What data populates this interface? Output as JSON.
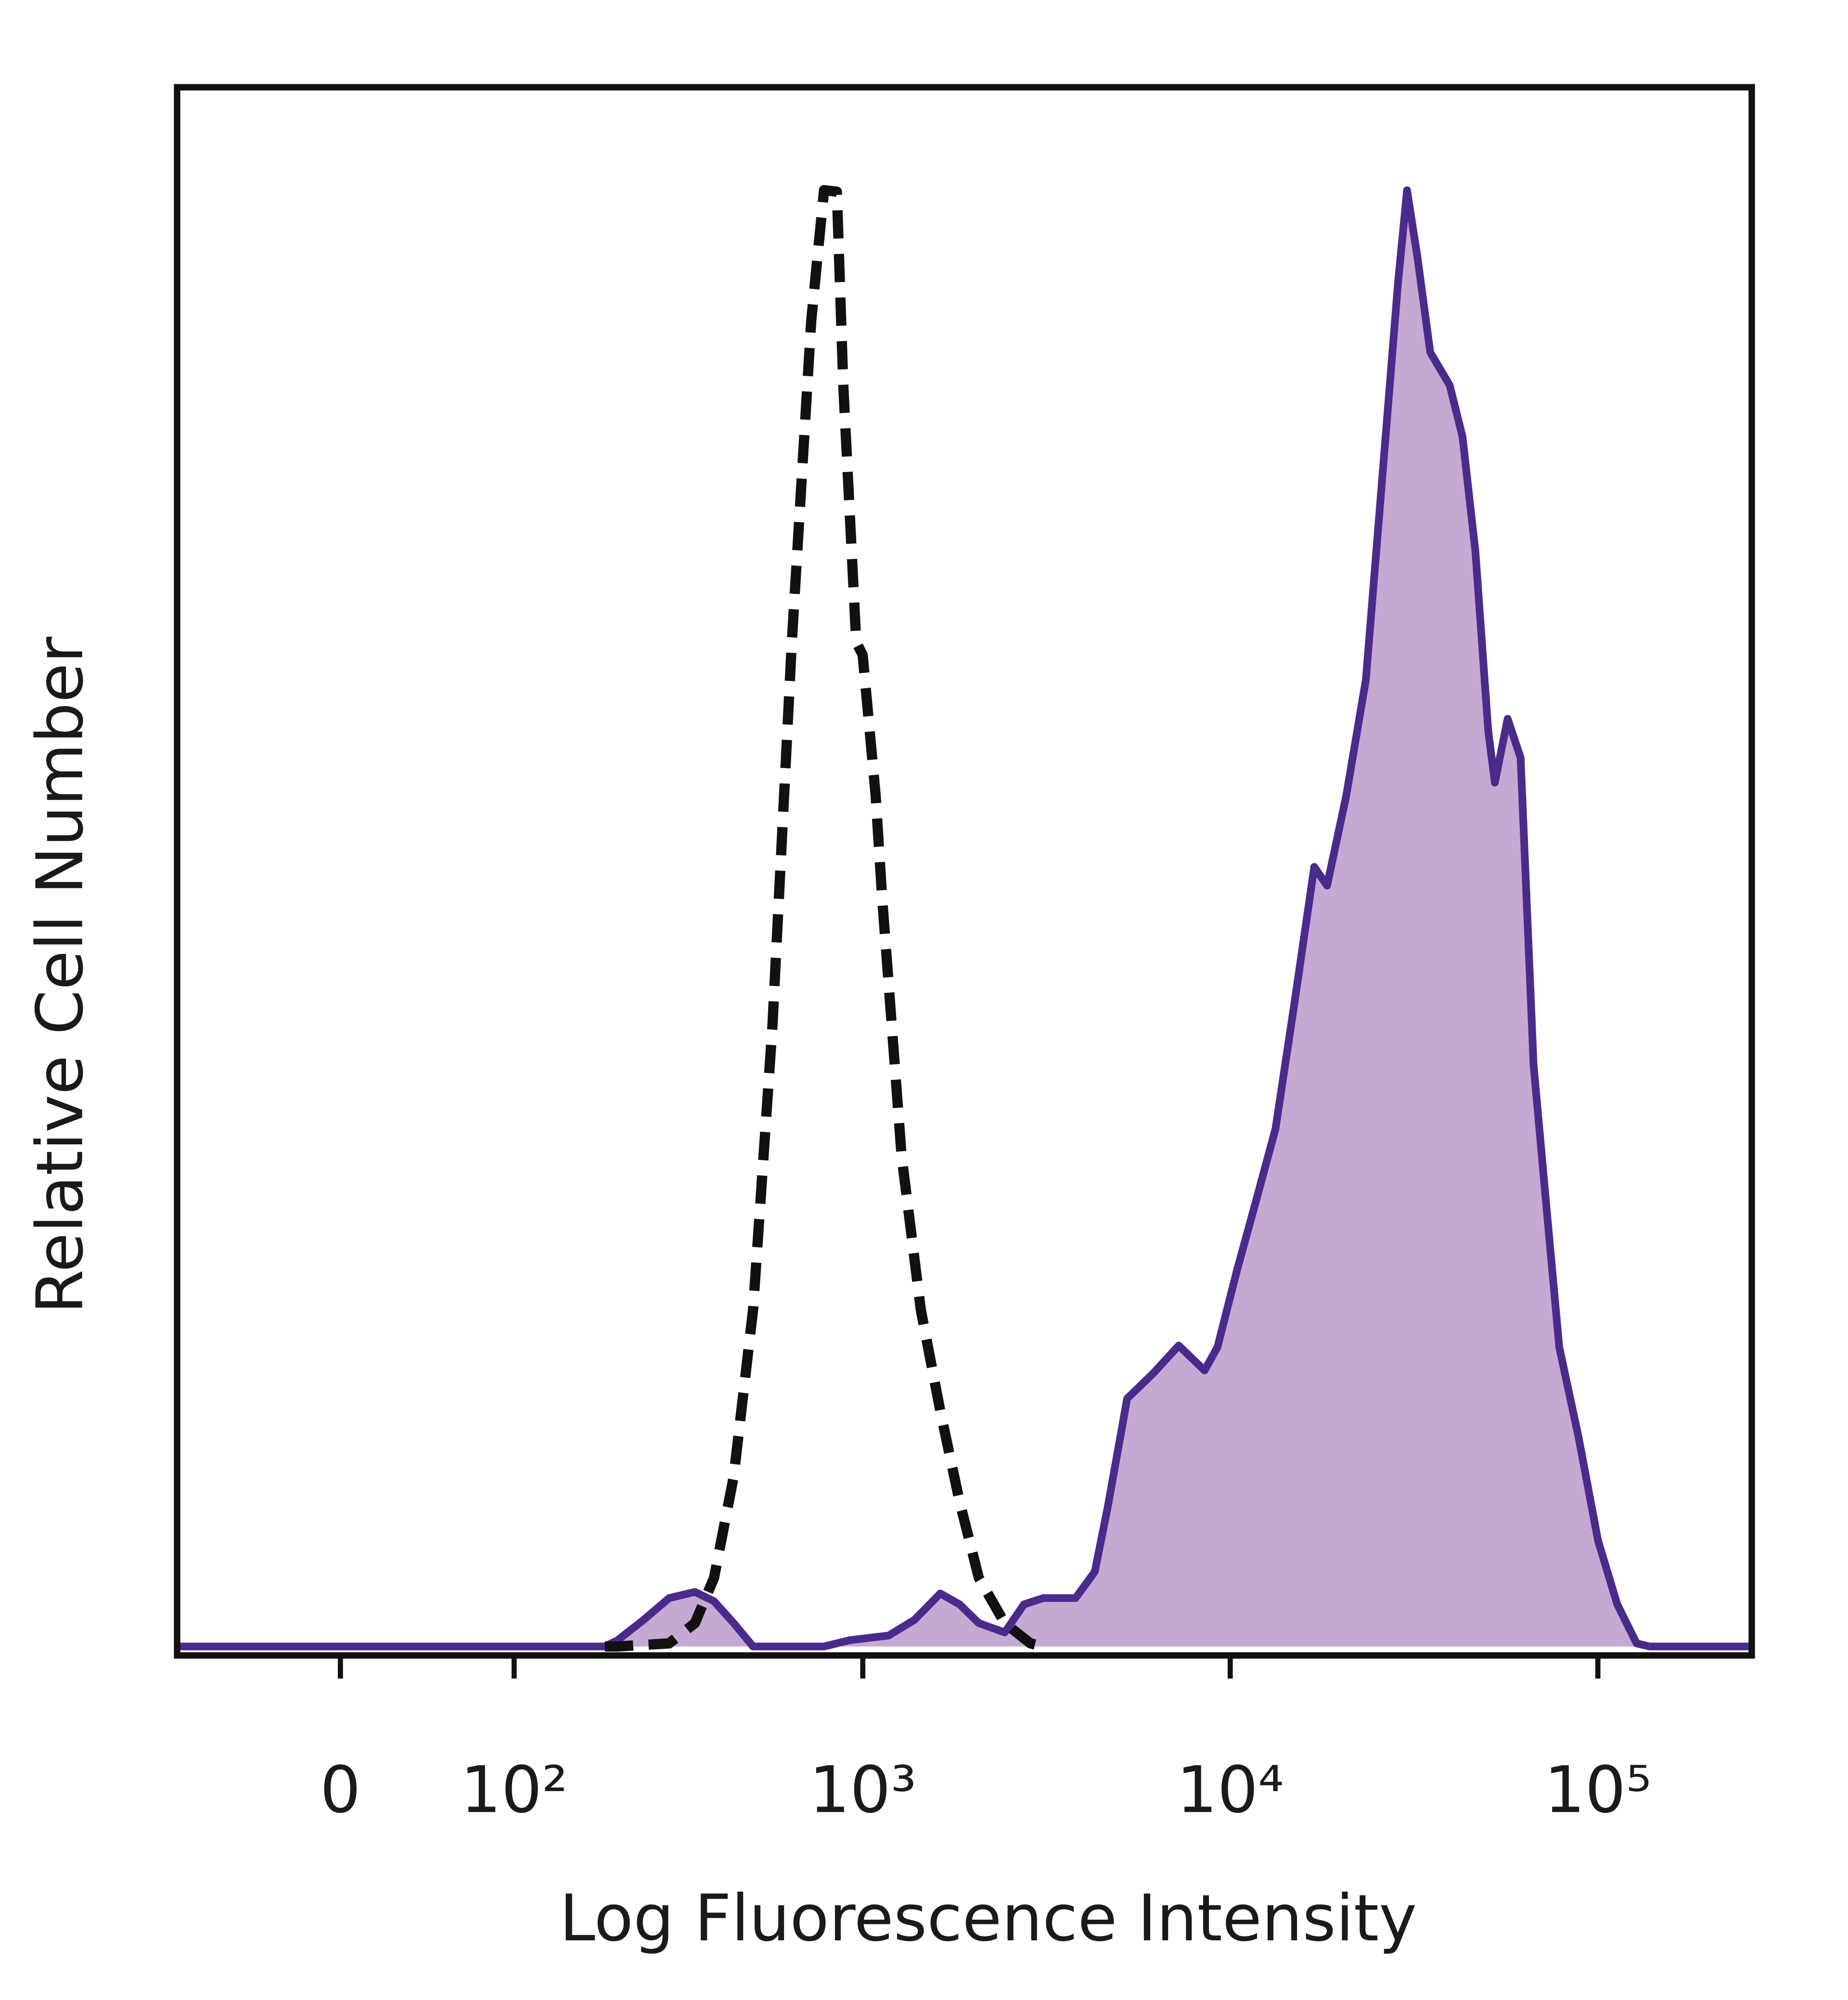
{
  "chart_data": {
    "type": "area",
    "x_label": "Log Fluorescence Intensity",
    "y_label": "Relative Cell Number",
    "xscale": "biexponential",
    "xlim": [
      -92,
      262144
    ],
    "ylim": [
      0,
      100
    ],
    "xticks": [
      0,
      {
        "value": 100,
        "label": "10²"
      },
      {
        "value": 1000,
        "label": "10³"
      },
      {
        "value": 10000,
        "label": "10⁴"
      },
      {
        "value": 100000,
        "label": "10⁵"
      }
    ],
    "series": [
      {
        "color": "#4a2b8c",
        "fill": "#c6a9d3",
        "style": "solid",
        "x": [
          -92,
          192,
          209,
          248,
          293,
          346,
          391,
          443,
          501,
          784,
          922,
          1176,
          1382,
          1626,
          1835,
          2070,
          2435,
          2747,
          3101,
          3795,
          4282,
          4647,
          5244,
          6164,
          7243,
          8516,
          9234,
          10422,
          11765,
          13278,
          14987,
          16928,
          18339,
          20695,
          23378,
          26387,
          28612,
          30259,
          32293,
          35016,
          39520,
          42826,
          46436,
          50350,
          52440,
          56848,
          61636,
          66842,
          72466,
          78508,
          88616,
          100092,
          112936,
          127452,
          138168,
          262144
        ],
        "values": [
          0,
          0,
          0.4,
          1.7,
          3.1,
          3.5,
          2.9,
          1.5,
          0,
          0,
          0.4,
          0.7,
          1.7,
          3.4,
          2.7,
          1.5,
          0.9,
          2.7,
          3.1,
          3.1,
          4.8,
          9.0,
          15.9,
          17.5,
          19.3,
          17.7,
          19.2,
          24.1,
          28.6,
          33.2,
          41.4,
          50.0,
          48.8,
          54.6,
          62.0,
          77.2,
          87.5,
          93.4,
          89.1,
          83.0,
          80.9,
          77.6,
          70.2,
          58.7,
          55.4,
          59.5,
          57.0,
          37.3,
          28.2,
          19.2,
          13.4,
          6.8,
          2.7,
          0.2,
          0,
          0
        ]
      },
      {
        "color": "#111111",
        "style": "dashed",
        "x": [
          192,
          209,
          293,
          346,
          391,
          443,
          501,
          566,
          640,
          723,
          784,
          850,
          885,
          960,
          999,
          1084,
          1129,
          1275,
          1439,
          1626,
          1835,
          2070,
          2435,
          2861,
          3101
        ],
        "values": [
          0,
          0,
          0.2,
          1.5,
          4.4,
          10.9,
          21.6,
          39.8,
          64.4,
          85.0,
          93.4,
          93.3,
          80.9,
          64.4,
          63.6,
          54.6,
          48.0,
          31.5,
          21.6,
          15.1,
          9.3,
          4.4,
          1.5,
          0.2,
          0
        ]
      }
    ]
  }
}
